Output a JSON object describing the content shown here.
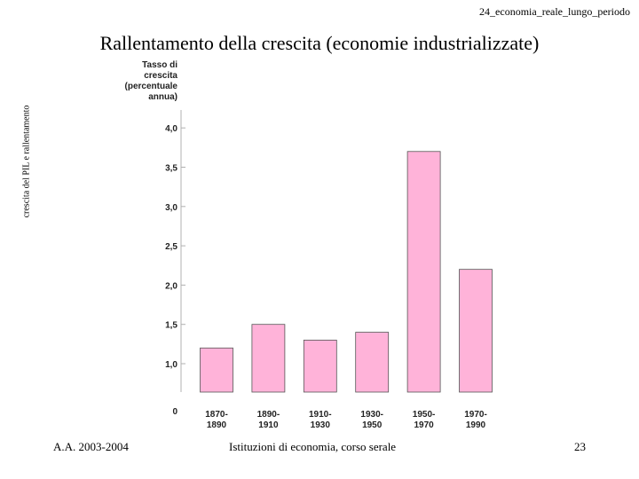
{
  "header": {
    "file_label": "24_economia_reale_lungo_periodo"
  },
  "slide": {
    "title": "Rallentamento della crescita (economie industrializzate)",
    "side_label": "crescita del PIL e rallentamento"
  },
  "footer": {
    "left": "A.A. 2003-2004",
    "center": "Istituzioni di economia, corso serale",
    "page_number": "23"
  },
  "colors": {
    "bar_fill": "#FFB3D9",
    "bar_stroke": "#555555",
    "axis": "#b0b0b0"
  },
  "chart_data": {
    "type": "bar",
    "ylabel_lines": [
      "Tasso di",
      "crescita",
      "(percentuale",
      "annua)"
    ],
    "categories": [
      [
        "1870-",
        "1890"
      ],
      [
        "1890-",
        "1910"
      ],
      [
        "1910-",
        "1930"
      ],
      [
        "1930-",
        "1950"
      ],
      [
        "1950-",
        "1970"
      ],
      [
        "1970-",
        "1990"
      ]
    ],
    "values": [
      1.2,
      1.5,
      1.3,
      1.4,
      3.7,
      2.2
    ],
    "yticks": [
      {
        "value": 0,
        "label": "0"
      },
      {
        "value": 1.0,
        "label": "1,0"
      },
      {
        "value": 1.5,
        "label": "1,5"
      },
      {
        "value": 2.0,
        "label": "2,0"
      },
      {
        "value": 2.5,
        "label": "2,5"
      },
      {
        "value": 3.0,
        "label": "3,0"
      },
      {
        "value": 3.5,
        "label": "3,5"
      },
      {
        "value": 4.0,
        "label": "4,0"
      }
    ],
    "axis_break": true,
    "grid": false
  }
}
